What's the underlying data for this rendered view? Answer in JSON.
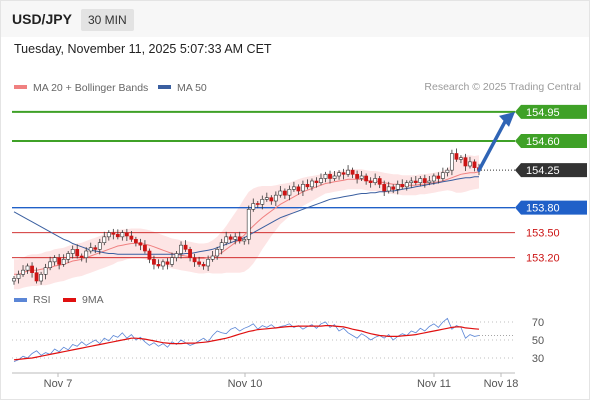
{
  "header": {
    "symbol": "USD/JPY",
    "timeframe": "30 MIN"
  },
  "timestamp": "Tuesday, November 11, 2025 5:07:33 AM CET",
  "credit": "Research © 2025 Trading Central",
  "colors": {
    "bullish": "#3fa127",
    "bearish": "#cc1515",
    "current": "#333333",
    "pivot": "#2060c8",
    "ma20": "#f08080",
    "ma50": "#3a5fa0",
    "band_fill": "#fde5e5",
    "rsi": "#5b86d6",
    "rsi_ma": "#e01010",
    "arrow": "#2f64b5"
  },
  "chart_data": [
    {
      "type": "candlestick",
      "title": "",
      "legend": [
        {
          "name": "MA 20 + Bollinger Bands",
          "color": "#f08080"
        },
        {
          "name": "MA 50",
          "color": "#3a5fa0"
        }
      ],
      "legend_position": "top-left",
      "x_ticks": [
        "Nov 7",
        "Nov 10",
        "Nov 11",
        "Nov 18"
      ],
      "ylim": [
        152.8,
        155.2
      ],
      "levels": [
        {
          "label": "154.95",
          "value": 154.95,
          "kind": "resistance"
        },
        {
          "label": "154.60",
          "value": 154.6,
          "kind": "resistance"
        },
        {
          "label": "154.25",
          "value": 154.25,
          "kind": "current"
        },
        {
          "label": "153.80",
          "value": 153.8,
          "kind": "pivot"
        },
        {
          "label": "153.50",
          "value": 153.5,
          "kind": "support"
        },
        {
          "label": "153.20",
          "value": 153.2,
          "kind": "support"
        }
      ],
      "close": [
        152.95,
        153.0,
        153.05,
        153.1,
        153.02,
        152.92,
        153.0,
        153.08,
        153.15,
        153.2,
        153.12,
        153.18,
        153.25,
        153.3,
        153.22,
        153.2,
        153.28,
        153.32,
        153.3,
        153.38,
        153.45,
        153.5,
        153.48,
        153.45,
        153.5,
        153.46,
        153.42,
        153.38,
        153.35,
        153.28,
        153.18,
        153.12,
        153.1,
        153.15,
        153.12,
        153.2,
        153.25,
        153.35,
        153.3,
        153.2,
        153.15,
        153.12,
        153.1,
        153.18,
        153.22,
        153.3,
        153.38,
        153.45,
        153.42,
        153.45,
        153.4,
        153.42,
        153.78,
        153.85,
        153.84,
        153.9,
        153.92,
        153.88,
        153.95,
        154.0,
        153.95,
        154.02,
        154.05,
        154.0,
        154.08,
        154.05,
        154.12,
        154.1,
        154.15,
        154.2,
        154.15,
        154.18,
        154.22,
        154.2,
        154.25,
        154.2,
        154.15,
        154.18,
        154.12,
        154.1,
        154.15,
        154.08,
        154.0,
        154.05,
        154.02,
        154.08,
        154.05,
        154.1,
        154.12,
        154.1,
        154.15,
        154.1,
        154.12,
        154.18,
        154.15,
        154.22,
        154.25,
        154.45,
        154.38,
        154.4,
        154.3,
        154.35,
        154.28,
        154.25
      ],
      "ma20": [
        153.0,
        153.0,
        153.02,
        153.04,
        153.05,
        153.05,
        153.06,
        153.07,
        153.08,
        153.1,
        153.11,
        153.12,
        153.14,
        153.16,
        153.17,
        153.18,
        153.2,
        153.22,
        153.24,
        153.26,
        153.28,
        153.3,
        153.32,
        153.34,
        153.35,
        153.36,
        153.37,
        153.37,
        153.37,
        153.36,
        153.35,
        153.33,
        153.31,
        153.29,
        153.27,
        153.25,
        153.24,
        153.23,
        153.22,
        153.21,
        153.2,
        153.19,
        153.19,
        153.2,
        153.21,
        153.23,
        153.26,
        153.3,
        153.34,
        153.38,
        153.42,
        153.47,
        153.53,
        153.58,
        153.63,
        153.68,
        153.72,
        153.76,
        153.8,
        153.84,
        153.87,
        153.9,
        153.93,
        153.96,
        153.99,
        154.01,
        154.03,
        154.05,
        154.07,
        154.09,
        154.1,
        154.11,
        154.12,
        154.13,
        154.14,
        154.14,
        154.14,
        154.14,
        154.13,
        154.12,
        154.12,
        154.11,
        154.1,
        154.09,
        154.08,
        154.08,
        154.07,
        154.07,
        154.07,
        154.07,
        154.08,
        154.08,
        154.09,
        154.1,
        154.11,
        154.12,
        154.14,
        154.16,
        154.18,
        154.2,
        154.21,
        154.22,
        154.22,
        154.23
      ],
      "ma50": [
        153.75,
        153.72,
        153.69,
        153.66,
        153.63,
        153.6,
        153.57,
        153.54,
        153.51,
        153.48,
        153.45,
        153.42,
        153.4,
        153.37,
        153.35,
        153.33,
        153.31,
        153.29,
        153.28,
        153.27,
        153.26,
        153.25,
        153.25,
        153.24,
        153.24,
        153.24,
        153.24,
        153.24,
        153.24,
        153.24,
        153.24,
        153.24,
        153.24,
        153.24,
        153.24,
        153.24,
        153.24,
        153.24,
        153.25,
        153.25,
        153.26,
        153.27,
        153.28,
        153.29,
        153.3,
        153.32,
        153.34,
        153.36,
        153.38,
        153.4,
        153.42,
        153.44,
        153.47,
        153.5,
        153.53,
        153.56,
        153.59,
        153.62,
        153.65,
        153.68,
        153.7,
        153.72,
        153.74,
        153.76,
        153.78,
        153.8,
        153.82,
        153.84,
        153.86,
        153.88,
        153.9,
        153.91,
        153.92,
        153.93,
        153.94,
        153.95,
        153.96,
        153.97,
        153.97,
        153.98,
        153.98,
        153.99,
        153.99,
        154.0,
        154.0,
        154.01,
        154.02,
        154.03,
        154.04,
        154.05,
        154.06,
        154.07,
        154.08,
        154.09,
        154.1,
        154.11,
        154.12,
        154.13,
        154.14,
        154.15,
        154.16,
        154.16,
        154.17,
        154.17
      ],
      "band_width": [
        0.18,
        0.18,
        0.18,
        0.19,
        0.19,
        0.19,
        0.19,
        0.2,
        0.2,
        0.2,
        0.2,
        0.2,
        0.2,
        0.2,
        0.2,
        0.2,
        0.2,
        0.2,
        0.2,
        0.2,
        0.2,
        0.2,
        0.2,
        0.19,
        0.19,
        0.18,
        0.18,
        0.18,
        0.18,
        0.18,
        0.18,
        0.18,
        0.18,
        0.18,
        0.18,
        0.18,
        0.18,
        0.18,
        0.18,
        0.18,
        0.18,
        0.18,
        0.18,
        0.18,
        0.2,
        0.22,
        0.25,
        0.28,
        0.32,
        0.36,
        0.4,
        0.44,
        0.46,
        0.45,
        0.42,
        0.38,
        0.34,
        0.3,
        0.27,
        0.24,
        0.22,
        0.2,
        0.19,
        0.18,
        0.17,
        0.16,
        0.15,
        0.14,
        0.13,
        0.12,
        0.12,
        0.12,
        0.12,
        0.12,
        0.12,
        0.12,
        0.12,
        0.12,
        0.12,
        0.12,
        0.12,
        0.12,
        0.12,
        0.12,
        0.12,
        0.12,
        0.12,
        0.12,
        0.12,
        0.12,
        0.12,
        0.12,
        0.12,
        0.12,
        0.12,
        0.12,
        0.13,
        0.16,
        0.2,
        0.22,
        0.22,
        0.21,
        0.2,
        0.2
      ],
      "projection": {
        "from": 154.25,
        "to": 154.95
      }
    },
    {
      "type": "line",
      "title": "",
      "legend": [
        {
          "name": "RSI",
          "color": "#5b86d6"
        },
        {
          "name": "9MA",
          "color": "#e01010"
        }
      ],
      "legend_position": "top-left",
      "y_ticks": [
        "70",
        "50",
        "30"
      ],
      "ylim": [
        20,
        80
      ],
      "rsi": [
        26,
        28,
        32,
        30,
        35,
        38,
        33,
        36,
        34,
        40,
        37,
        42,
        39,
        45,
        43,
        48,
        44,
        47,
        50,
        46,
        52,
        49,
        55,
        53,
        58,
        52,
        56,
        50,
        53,
        48,
        44,
        47,
        43,
        46,
        42,
        48,
        45,
        50,
        47,
        44,
        46,
        49,
        52,
        48,
        55,
        60,
        58,
        57,
        62,
        64,
        60,
        63,
        65,
        68,
        62,
        66,
        64,
        67,
        63,
        65,
        66,
        68,
        64,
        66,
        62,
        65,
        67,
        63,
        68,
        70,
        64,
        67,
        60,
        63,
        58,
        55,
        52,
        57,
        54,
        50,
        53,
        55,
        52,
        56,
        50,
        54,
        57,
        55,
        60,
        58,
        63,
        60,
        65,
        68,
        64,
        70,
        74,
        62,
        66,
        64,
        52,
        56,
        54,
        55
      ],
      "ma9": [
        28,
        28.5,
        29,
        29.5,
        30,
        31,
        32,
        33,
        34,
        35,
        36,
        37,
        38,
        39,
        40,
        41,
        42,
        43,
        44,
        45,
        46,
        47,
        48,
        49,
        50,
        51,
        52,
        52,
        51.5,
        51,
        50,
        49,
        48,
        47,
        46.5,
        46,
        46,
        46,
        46.5,
        46.5,
        46.5,
        47,
        47.5,
        48,
        49,
        50,
        51,
        52,
        53.5,
        55,
        56.5,
        58,
        59.5,
        60.5,
        61.5,
        62,
        62.5,
        63,
        63.5,
        64,
        64.5,
        65,
        65,
        65.5,
        65.5,
        65.5,
        65.5,
        65.5,
        65.5,
        66,
        66,
        65.5,
        65,
        64.5,
        63.5,
        62,
        61,
        60,
        58.5,
        57,
        56,
        55,
        54.5,
        54,
        54,
        54,
        54.5,
        55,
        55.5,
        56,
        57,
        58,
        59,
        60,
        61,
        62,
        63,
        64,
        64.5,
        64.5,
        63.5,
        63,
        62.5,
        62
      ]
    }
  ],
  "oscillator_ref_levels": [
    70,
    50,
    30
  ],
  "future_ticks": [
    "Nov 18"
  ]
}
